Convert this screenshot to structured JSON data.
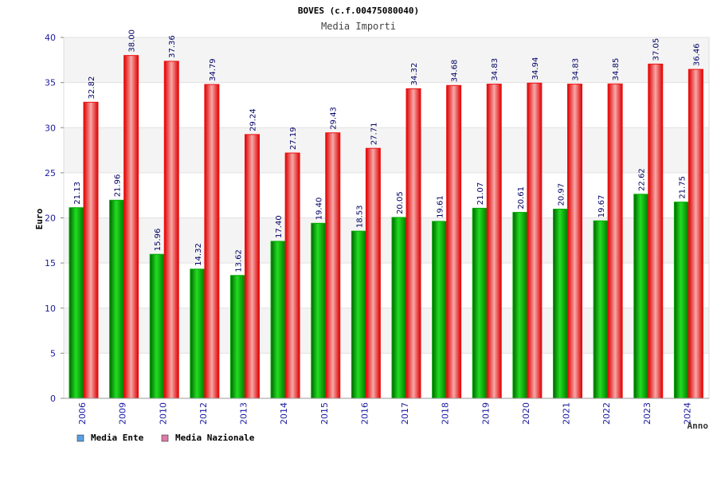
{
  "chart_data": {
    "type": "bar",
    "title": "BOVES (c.f.00475080040)",
    "subtitle": "Media Importi",
    "xlabel": "Anno",
    "ylabel": "Euro",
    "ylim": [
      0,
      40
    ],
    "yticks": [
      "0",
      "5",
      "10",
      "15",
      "20",
      "25",
      "30",
      "35",
      "40"
    ],
    "categories": [
      "2006",
      "2009",
      "2010",
      "2012",
      "2013",
      "2014",
      "2015",
      "2016",
      "2017",
      "2018",
      "2019",
      "2020",
      "2021",
      "2022",
      "2023",
      "2024"
    ],
    "series": [
      {
        "name": "Media Ente",
        "values": [
          21.13,
          21.96,
          15.96,
          14.32,
          13.62,
          17.4,
          19.4,
          18.53,
          20.05,
          19.61,
          21.07,
          20.61,
          20.97,
          19.67,
          22.62,
          21.75
        ],
        "labels": [
          "21.13",
          "21.96",
          "15.96",
          "14.32",
          "13.62",
          "17.40",
          "19.40",
          "18.53",
          "20.05",
          "19.61",
          "21.07",
          "20.61",
          "20.97",
          "19.67",
          "22.62",
          "21.75"
        ],
        "color": "#00b000",
        "legend_color": "#5aa0e6"
      },
      {
        "name": "Media Nazionale",
        "values": [
          32.82,
          38.0,
          37.36,
          34.79,
          29.24,
          27.19,
          29.43,
          27.71,
          34.32,
          34.68,
          34.83,
          34.94,
          34.83,
          34.85,
          37.05,
          36.46
        ],
        "labels": [
          "32.82",
          "38.00",
          "37.36",
          "34.79",
          "29.24",
          "27.19",
          "29.43",
          "27.71",
          "34.32",
          "34.68",
          "34.83",
          "34.94",
          "34.83",
          "34.85",
          "37.05",
          "36.46"
        ],
        "color": "#ee1111",
        "legend_color": "#e07aa8"
      }
    ],
    "grid": true,
    "legend_position": "bottom-left"
  }
}
